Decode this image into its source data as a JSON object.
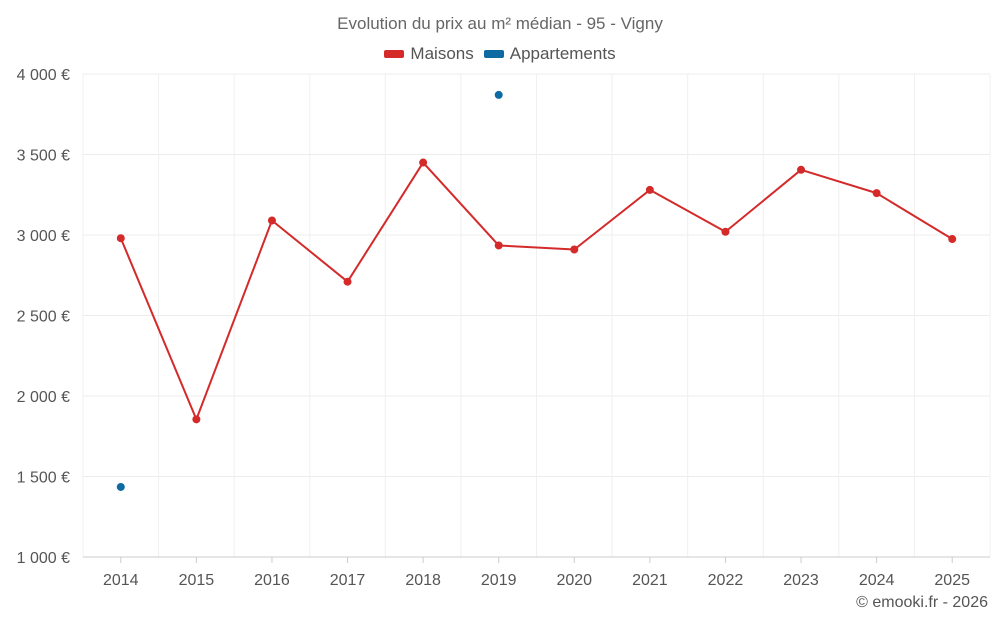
{
  "chart_data": {
    "type": "line",
    "title": "Evolution du prix au m² médian - 95 - Vigny",
    "categories": [
      "2014",
      "2015",
      "2016",
      "2017",
      "2018",
      "2019",
      "2020",
      "2021",
      "2022",
      "2023",
      "2024",
      "2025"
    ],
    "ylim": [
      1000,
      4000
    ],
    "yticks": [
      1000,
      1500,
      2000,
      2500,
      3000,
      3500,
      4000
    ],
    "ytick_labels": [
      "1 000 €",
      "1 500 €",
      "2 000 €",
      "2 500 €",
      "3 000 €",
      "3 500 €",
      "4 000 €"
    ],
    "grid": true,
    "legend_position": "top-center",
    "series": [
      {
        "name": "Maisons",
        "color": "#d42a2a",
        "values": [
          2980,
          1855,
          3090,
          2710,
          3450,
          2935,
          2910,
          3280,
          3020,
          3405,
          3260,
          2975
        ]
      },
      {
        "name": "Appartements",
        "color": "#0e6aa3",
        "values": [
          1435,
          null,
          null,
          null,
          null,
          3870,
          null,
          null,
          null,
          null,
          null,
          null
        ]
      }
    ]
  },
  "credit": "© emooki.fr - 2026"
}
